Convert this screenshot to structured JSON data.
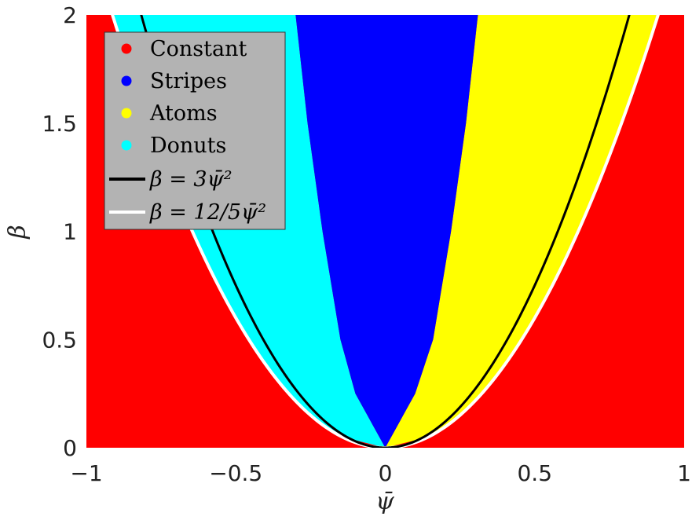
{
  "chart_data": {
    "type": "area",
    "title": "",
    "xlabel": "ψ̄",
    "ylabel": "β",
    "xlim": [
      -1,
      1
    ],
    "ylim": [
      0,
      2
    ],
    "x_ticks": [
      "−1",
      "−0.5",
      "0",
      "0.5",
      "1"
    ],
    "y_ticks": [
      "0",
      "0.5",
      "1",
      "1.5",
      "2"
    ],
    "background_region": "Constant",
    "regions": [
      {
        "name": "Constant",
        "color": "#ff0000",
        "description": "outside β = 12/5 ψ̄²"
      },
      {
        "name": "Stripes",
        "color": "#0000ff",
        "boundary_left": {
          "beta": [
            0,
            0.25,
            0.5,
            1.0,
            1.5,
            2.0
          ],
          "psi": [
            0,
            -0.1,
            -0.15,
            -0.21,
            -0.26,
            -0.3
          ]
        },
        "boundary_right": {
          "beta": [
            0,
            0.25,
            0.5,
            1.0,
            1.5,
            2.0
          ],
          "psi": [
            0,
            0.1,
            0.16,
            0.22,
            0.27,
            0.31
          ]
        }
      },
      {
        "name": "Atoms",
        "color": "#ffff00",
        "description": "between Stripes right boundary and β = 12/5 ψ̄² (ψ̄ > 0)"
      },
      {
        "name": "Donuts",
        "color": "#00ffff",
        "description": "between β = 12/5 ψ̄² and Stripes left boundary (ψ̄ < 0)"
      }
    ],
    "curves": [
      {
        "name": "β = 3ψ̄²",
        "color": "#000000",
        "coefficient": 3
      },
      {
        "name": "β = 12/5ψ̄²",
        "color": "#ffffff",
        "coefficient": 2.4
      }
    ],
    "legend": {
      "position": "top-left",
      "entries": [
        {
          "label": "Constant",
          "color": "#ff0000",
          "marker": "dot"
        },
        {
          "label": "Stripes",
          "color": "#0000ff",
          "marker": "dot"
        },
        {
          "label": "Atoms",
          "color": "#ffff00",
          "marker": "dot"
        },
        {
          "label": "Donuts",
          "color": "#00ffff",
          "marker": "dot"
        },
        {
          "label": "β = 3ψ̄²",
          "color": "#000000",
          "marker": "line"
        },
        {
          "label": "β = 12/5ψ̄²",
          "color": "#ffffff",
          "marker": "line"
        }
      ]
    }
  }
}
